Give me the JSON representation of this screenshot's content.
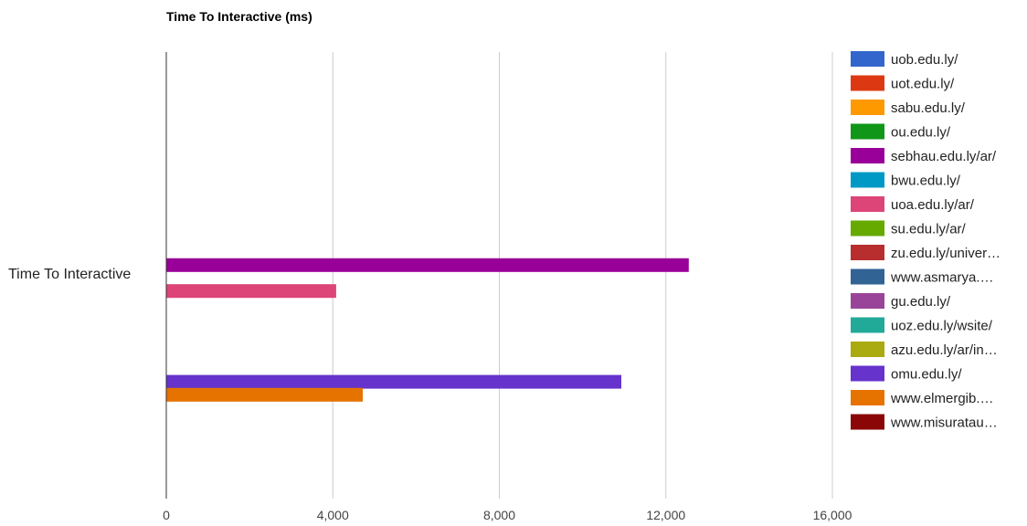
{
  "chart_data": {
    "type": "bar",
    "orientation": "horizontal",
    "title": "Time To Interactive (ms)",
    "categories": [
      "Time To Interactive"
    ],
    "xlim": [
      0,
      16000
    ],
    "x_ticks": [
      "0",
      "4,000",
      "8,000",
      "12,000",
      "16,000"
    ],
    "grid": true,
    "legend_position": "right",
    "series": [
      {
        "name": "uob.edu.ly/",
        "color": "#3366cc",
        "value": null
      },
      {
        "name": "uot.edu.ly/",
        "color": "#dc3912",
        "value": null
      },
      {
        "name": "sabu.edu.ly/",
        "color": "#ff9900",
        "value": null
      },
      {
        "name": "ou.edu.ly/",
        "color": "#109618",
        "value": null
      },
      {
        "name": "sebhau.edu.ly/ar/",
        "color": "#990099",
        "value": 12550
      },
      {
        "name": "bwu.edu.ly/",
        "color": "#0099c6",
        "value": null
      },
      {
        "name": "uoa.edu.ly/ar/",
        "color": "#dd4477",
        "value": 4080
      },
      {
        "name": "su.edu.ly/ar/",
        "color": "#66aa00",
        "value": null
      },
      {
        "name": "zu.edu.ly/univer…",
        "color": "#b82e2e",
        "value": null
      },
      {
        "name": "www.asmarya.…",
        "color": "#316395",
        "value": null
      },
      {
        "name": "gu.edu.ly/",
        "color": "#994499",
        "value": null
      },
      {
        "name": "uoz.edu.ly/wsite/",
        "color": "#22aa99",
        "value": null
      },
      {
        "name": "azu.edu.ly/ar/in…",
        "color": "#aaaa11",
        "value": null
      },
      {
        "name": "omu.edu.ly/",
        "color": "#6633cc",
        "value": 10930
      },
      {
        "name": "www.elmergib.…",
        "color": "#e67300",
        "value": 4720
      },
      {
        "name": "www.misuratau…",
        "color": "#8b0707",
        "value": null
      }
    ]
  }
}
